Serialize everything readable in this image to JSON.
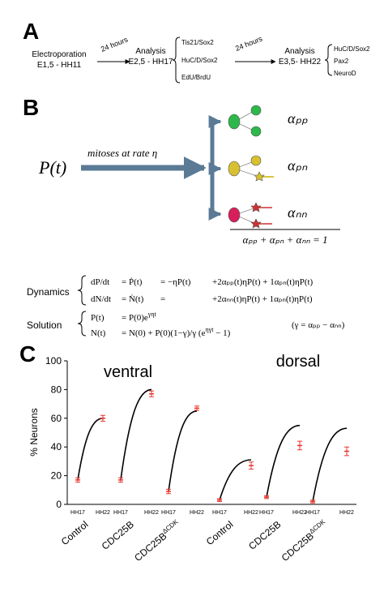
{
  "panel_a": {
    "label": "A",
    "steps": [
      {
        "title": "Electroporation",
        "subtitle": "E1,5 - HH11"
      },
      {
        "title": "Analysis",
        "subtitle": "E2,5 - HH17",
        "markers": [
          "Tis21/Sox2",
          "HuC/D/Sox2",
          "EdU/BrdU"
        ]
      },
      {
        "title": "Analysis",
        "subtitle": "E3,5- HH22",
        "markers": [
          "HuC/D/Sox2",
          "Pax2",
          "NeuroD"
        ]
      }
    ],
    "intervals": [
      "24 hours",
      "24 hours"
    ]
  },
  "panel_b": {
    "label": "B",
    "source": "P(t)",
    "arrow_label": "mitoses at rate η",
    "outcomes": [
      "αₚₚ",
      "αₚₙ",
      "αₙₙ"
    ],
    "constraint": "αₚₚ + αₚₙ + αₙₙ = 1",
    "dynamics": {
      "label": "Dynamics",
      "rows": [
        [
          "dP/dt",
          "= Ṗ(t)",
          "= −ηP(t)",
          "+2αₚₚ(t)ηP(t) + 1αₚₙ(t)ηP(t)"
        ],
        [
          "dN/dt",
          "= Ṅ(t)",
          "=",
          "+2αₙₙ(t)ηP(t) + 1αₚₙ(t)ηP(t)"
        ]
      ]
    },
    "solution": {
      "label": "Solution",
      "rows": [
        {
          "lhs": "P(t)",
          "rhs": "= P(0)e",
          "sup": "γηt"
        },
        {
          "lhs": "N(t)",
          "rhs": "= N(0) + P(0)(1−γ)/γ (e",
          "sup": "ηγt",
          "tail": " − 1)"
        }
      ],
      "note": "(γ = αₚₚ − αₙₙ)"
    }
  },
  "chart_data": {
    "type": "scatter",
    "panel_label": "C",
    "ylabel": "% Neurons",
    "ylim": [
      0,
      100
    ],
    "yticks": [
      0,
      20,
      40,
      60,
      80,
      100
    ],
    "regions": [
      "ventral",
      "dorsal"
    ],
    "stages": [
      "HH17",
      "HH22"
    ],
    "point_color": "#e8342c",
    "curve_color": "#000000",
    "groups": [
      {
        "name": "Control",
        "values": [
          17,
          60
        ],
        "errors": [
          1.5,
          2
        ],
        "model_end": 60
      },
      {
        "name": "CDC25B",
        "values": [
          17,
          77
        ],
        "errors": [
          1.5,
          2
        ],
        "model_end": 80
      },
      {
        "name": "CDC25B",
        "name_sup": "ΔCDK",
        "values": [
          9,
          67
        ],
        "errors": [
          1.5,
          1.5
        ],
        "model_end": 65
      },
      {
        "name": "Control",
        "values": [
          3,
          27
        ],
        "errors": [
          1,
          2.5
        ],
        "model_end": 31
      },
      {
        "name": "CDC25B",
        "values": [
          5,
          41
        ],
        "errors": [
          1,
          3
        ],
        "model_end": 55
      },
      {
        "name": "CDC25B",
        "name_sup": "ΔCDK",
        "values": [
          2,
          37
        ],
        "errors": [
          1,
          3
        ],
        "model_end": 53
      }
    ]
  }
}
